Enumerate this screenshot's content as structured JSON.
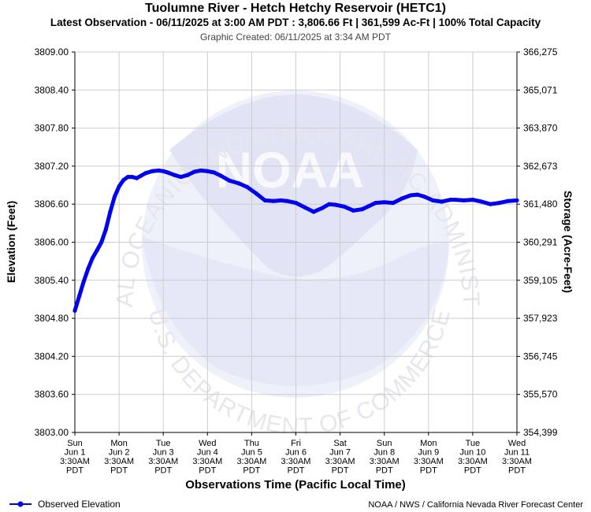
{
  "header": {
    "title": "Tuolumne River - Hetch Hetchy Reservoir (HETC1)",
    "subtitle": "Latest Observation - 06/11/2025 at 3:00 AM PDT : 3,806.66 Ft | 361,599 Ac-Ft | 100% Total Capacity",
    "created": "Graphic Created: 06/11/2025 at 3:34 AM PDT"
  },
  "footer": {
    "legend_label": "Observed Elevation",
    "credit": "NOAA / NWS / California Nevada River Forecast Center"
  },
  "watermark": {
    "logo_text": "NOAA",
    "ring_text": "NATIONAL OCEANIC AND ATMOSPHERIC ADMINISTRATION",
    "bottom_text": "U.S. DEPARTMENT OF COMMERCE"
  },
  "colors": {
    "series": "#0000ee",
    "grid": "#cccccc",
    "watermark": "#e8e8f6"
  },
  "chart_data": {
    "type": "line",
    "xlabel": "Observations Time (Pacific Local Time)",
    "ylabel": "Elevation (Feet)",
    "y2label": "Storage (Acre-Feet)",
    "ylim": [
      3803.0,
      3809.0
    ],
    "xlim": [
      0,
      10
    ],
    "y_ticks": [
      "3803.00",
      "3803.60",
      "3804.20",
      "3804.80",
      "3805.40",
      "3806.00",
      "3806.60",
      "3807.20",
      "3807.80",
      "3808.40",
      "3809.00"
    ],
    "y2_ticks": [
      "354,399",
      "355,570",
      "356,745",
      "357,923",
      "359,105",
      "360,291",
      "361,480",
      "362,673",
      "363,870",
      "365,071",
      "366,275"
    ],
    "x_ticks": [
      {
        "day": "Sun",
        "date": "Jun 1",
        "time": "3:30AM",
        "tz": "PDT"
      },
      {
        "day": "Mon",
        "date": "Jun 2",
        "time": "3:30AM",
        "tz": "PDT"
      },
      {
        "day": "Tue",
        "date": "Jun 3",
        "time": "3:30AM",
        "tz": "PDT"
      },
      {
        "day": "Wed",
        "date": "Jun 4",
        "time": "3:30AM",
        "tz": "PDT"
      },
      {
        "day": "Thu",
        "date": "Jun 5",
        "time": "3:30AM",
        "tz": "PDT"
      },
      {
        "day": "Fri",
        "date": "Jun 6",
        "time": "3:30AM",
        "tz": "PDT"
      },
      {
        "day": "Sat",
        "date": "Jun 7",
        "time": "3:30AM",
        "tz": "PDT"
      },
      {
        "day": "Sun",
        "date": "Jun 8",
        "time": "3:30AM",
        "tz": "PDT"
      },
      {
        "day": "Mon",
        "date": "Jun 9",
        "time": "3:30AM",
        "tz": "PDT"
      },
      {
        "day": "Tue",
        "date": "Jun 10",
        "time": "3:30AM",
        "tz": "PDT"
      },
      {
        "day": "Wed",
        "date": "Jun 11",
        "time": "3:30AM",
        "tz": "PDT"
      }
    ],
    "grid": true,
    "legend": "bottom-left",
    "series": [
      {
        "name": "Observed Elevation",
        "x": [
          0.0,
          0.1,
          0.2,
          0.3,
          0.4,
          0.5,
          0.6,
          0.7,
          0.8,
          0.9,
          1.0,
          1.1,
          1.2,
          1.3,
          1.4,
          1.5,
          1.6,
          1.75,
          1.9,
          2.0,
          2.1,
          2.25,
          2.4,
          2.55,
          2.7,
          2.85,
          3.0,
          3.15,
          3.3,
          3.5,
          3.7,
          3.9,
          4.1,
          4.3,
          4.5,
          4.65,
          4.8,
          5.0,
          5.2,
          5.4,
          5.6,
          5.75,
          5.9,
          6.1,
          6.3,
          6.5,
          6.65,
          6.8,
          7.0,
          7.2,
          7.4,
          7.6,
          7.75,
          7.9,
          8.1,
          8.3,
          8.5,
          8.6,
          8.8,
          9.0,
          9.2,
          9.4,
          9.6,
          9.8,
          10.0
        ],
        "y": [
          3804.92,
          3805.15,
          3805.38,
          3805.58,
          3805.75,
          3805.87,
          3806.0,
          3806.2,
          3806.48,
          3806.72,
          3806.88,
          3806.98,
          3807.03,
          3807.03,
          3807.01,
          3807.05,
          3807.09,
          3807.12,
          3807.13,
          3807.12,
          3807.1,
          3807.06,
          3807.03,
          3807.06,
          3807.11,
          3807.13,
          3807.12,
          3807.1,
          3807.05,
          3806.97,
          3806.93,
          3806.87,
          3806.77,
          3806.66,
          3806.65,
          3806.66,
          3806.65,
          3806.62,
          3806.55,
          3806.48,
          3806.54,
          3806.6,
          3806.59,
          3806.56,
          3806.5,
          3806.52,
          3806.57,
          3806.62,
          3806.63,
          3806.62,
          3806.69,
          3806.74,
          3806.75,
          3806.72,
          3806.66,
          3806.64,
          3806.67,
          3806.67,
          3806.66,
          3806.67,
          3806.64,
          3806.6,
          3806.62,
          3806.65,
          3806.66
        ]
      }
    ]
  }
}
